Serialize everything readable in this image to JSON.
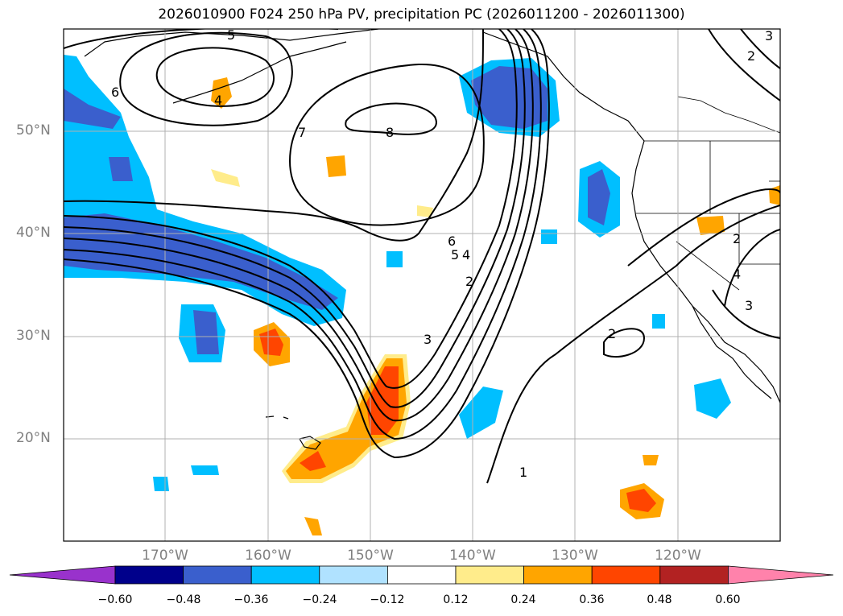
{
  "title": "2026010900 F024 250 hPa PV, precipitation PC (2026011200 - 2026011300)",
  "lat_labels": [
    "50°N",
    "40°N",
    "30°N",
    "20°N"
  ],
  "lon_labels": [
    "170°W",
    "160°W",
    "150°W",
    "140°W",
    "130°W",
    "120°W"
  ],
  "contour_labels": [
    "5",
    "6",
    "7",
    "8",
    "4",
    "6",
    "5",
    "4",
    "2",
    "3",
    "1",
    "2",
    "2",
    "3",
    "2",
    "3",
    "4"
  ],
  "colorbar": {
    "ticks": [
      "−0.60",
      "−0.48",
      "−0.36",
      "−0.24",
      "−0.12",
      "0.12",
      "0.24",
      "0.36",
      "0.48",
      "0.60"
    ],
    "colors": [
      "#9932cc",
      "#00008b",
      "#3a5fcd",
      "#00bfff",
      "#b0e2ff",
      "#ffffff",
      "#ffec8b",
      "#ffa500",
      "#ff4500",
      "#b22222",
      "#ff82ab"
    ]
  },
  "colors": {
    "land_outline": "#000000",
    "grid": "#b0b0b0",
    "contour": "#000000"
  }
}
